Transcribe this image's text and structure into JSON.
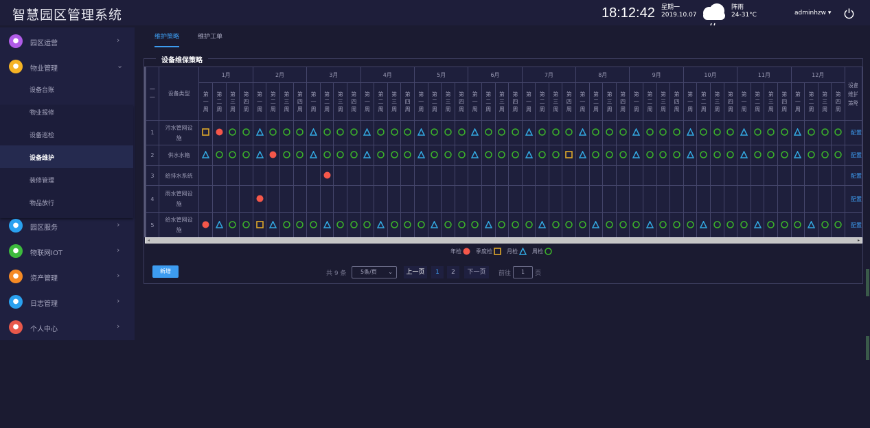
{
  "header": {
    "title": "智慧园区管理系统",
    "time": "18:12:42",
    "weekday": "星期一",
    "date": "2019.10.07",
    "weather": "阵雨",
    "temperature": "24-31°C",
    "username": "adminhzw",
    "weather_icon": "cloud-rain-icon",
    "power_icon": "power-icon"
  },
  "sidebar": {
    "items": [
      {
        "label": "园区运营",
        "icon": "building-icon",
        "color": "#b05ce8"
      },
      {
        "label": "物业管理",
        "icon": "lightbulb-icon",
        "color": "#f5b324",
        "expanded": true
      },
      {
        "label": "园区服务",
        "icon": "robot-icon",
        "color": "#2aa1f0"
      },
      {
        "label": "物联网IOT",
        "icon": "shield-icon",
        "color": "#3dbb3d"
      },
      {
        "label": "资产管理",
        "icon": "asset-icon",
        "color": "#f58a24"
      },
      {
        "label": "日志管理",
        "icon": "robot-icon",
        "color": "#2aa1f0"
      },
      {
        "label": "个人中心",
        "icon": "person-icon",
        "color": "#e8584a"
      }
    ],
    "subitems": [
      "设备台账",
      "物业报修",
      "设备巡检",
      "设备维护",
      "装修管理",
      "物品放行"
    ],
    "active_subitem": "设备维护"
  },
  "tabs": [
    {
      "label": "维护策略",
      "active": true
    },
    {
      "label": "维护工单",
      "active": false
    }
  ],
  "panel": {
    "title": "设备维保策略"
  },
  "table": {
    "index_header": "一一",
    "type_header": "设备类型",
    "action_header": "设备维护策略",
    "months": [
      "1月",
      "2月",
      "3月",
      "4月",
      "5月",
      "6月",
      "7月",
      "8月",
      "9月",
      "10月",
      "11月",
      "12月"
    ],
    "weeks": [
      "第一周",
      "第二周",
      "第三周",
      "第四周"
    ],
    "legend_codes": {
      "A": "年检",
      "Q": "季度检",
      "M": "月检",
      "W": "周检"
    },
    "rows": [
      {
        "index": "1",
        "type": "污水管网设施",
        "action": "配置",
        "schedule": [
          "QAWW",
          "MWWW",
          "MWWW",
          "MWWW",
          "MWWW",
          "MWWW",
          "MWWW",
          "MWWW",
          "MWWW",
          "MWWW",
          "MWWW",
          "MWWW"
        ]
      },
      {
        "index": "2",
        "type": "供水水箱",
        "action": "配置",
        "schedule": [
          "MWWW",
          "MAWW",
          "MWWW",
          "MWWW",
          "MWWW",
          "MWWW",
          "MWWQ",
          "MWWW",
          "MWWW",
          "MWWW",
          "MWWW",
          "MWWW"
        ]
      },
      {
        "index": "3",
        "type": "给排水系统",
        "action": "配置",
        "schedule": [
          "----",
          "----",
          "-A--",
          "----",
          "----",
          "----",
          "----",
          "----",
          "----",
          "----",
          "----",
          "----"
        ]
      },
      {
        "index": "4",
        "type": "雨水管网设施",
        "action": "配置",
        "schedule": [
          "----",
          "A---",
          "----",
          "----",
          "----",
          "----",
          "----",
          "----",
          "----",
          "----",
          "----",
          "----"
        ]
      },
      {
        "index": "5",
        "type": "给水管网设施",
        "action": "配置",
        "schedule": [
          "AMWW",
          "QMWW",
          "WMWW",
          "WMWW",
          "WMWW",
          "WMWW",
          "WMWW",
          "WMWW",
          "WMWW",
          "WMWW",
          "WMWW",
          "WMWW"
        ]
      }
    ]
  },
  "legend": [
    {
      "label": "年检",
      "code": "A"
    },
    {
      "label": "季度检",
      "code": "Q"
    },
    {
      "label": "月检",
      "code": "M"
    },
    {
      "label": "周检",
      "code": "W"
    }
  ],
  "colors": {
    "A": "#f5574a",
    "Q": "#e0a92a",
    "M": "#33a8e0",
    "W": "#3db82a",
    "accent": "#3d9cf0"
  },
  "footer": {
    "add_label": "新增",
    "total": "共 9 条",
    "page_size": "5条/页",
    "prev": "上一页",
    "pages": [
      "1",
      "2"
    ],
    "current_page": "1",
    "next": "下一页",
    "goto_label": "前往",
    "goto_value": "1",
    "page_unit": "页"
  }
}
